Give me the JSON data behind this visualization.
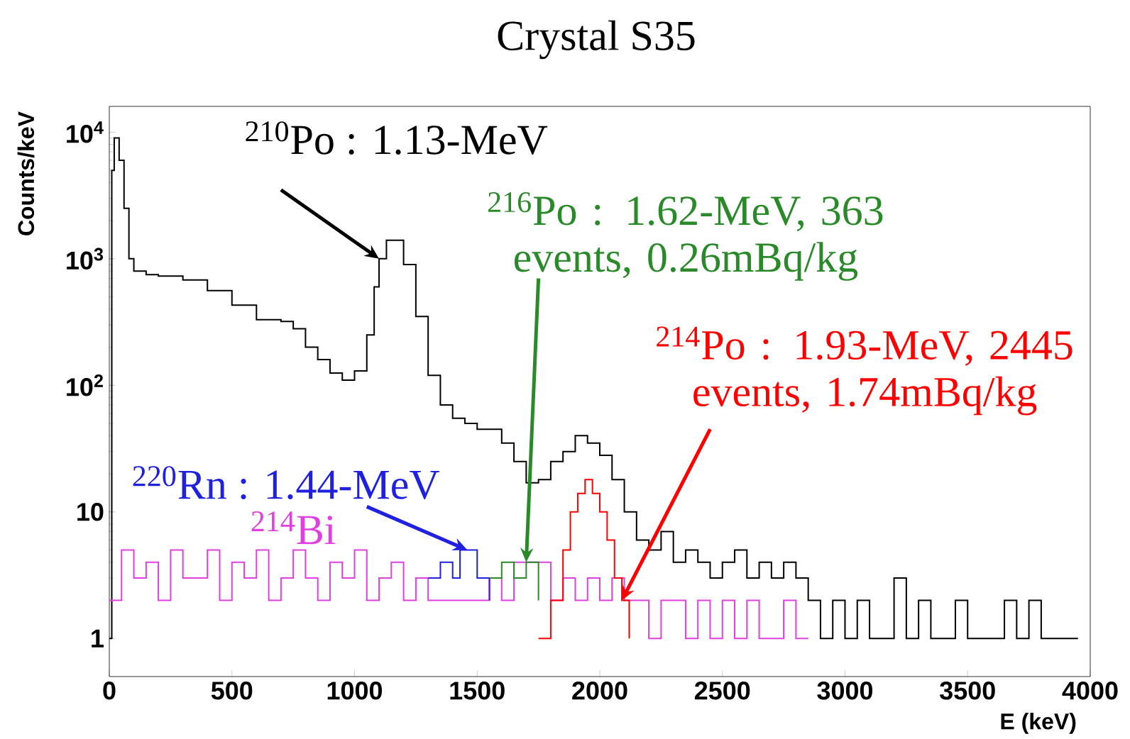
{
  "chart_data": {
    "type": "step",
    "title": "Crystal S35",
    "xlabel": "E (keV)",
    "ylabel": "Counts/keV",
    "log": "y",
    "xlim": [
      0,
      4000
    ],
    "ylim": [
      0.5,
      16000
    ],
    "xticks": [
      0,
      500,
      1000,
      1500,
      2000,
      2500,
      3000,
      3500,
      4000
    ],
    "yticks": [
      1,
      10,
      {
        "value": 100,
        "label": "10$^{2}$"
      },
      {
        "value": 1000,
        "label": "10$^{3}$"
      },
      {
        "value": 10000,
        "label": "10$^{4}$"
      }
    ],
    "grid": false,
    "series": [
      {
        "name": "$^{210}$Po : 1.13-MeV",
        "color": "#000000",
        "x": [
          0,
          10,
          20,
          40,
          60,
          80,
          100,
          150,
          200,
          300,
          400,
          500,
          600,
          700,
          750,
          800,
          850,
          900,
          950,
          1000,
          1050,
          1080,
          1100,
          1130,
          1160,
          1200,
          1250,
          1300,
          1350,
          1400,
          1450,
          1500,
          1550,
          1600,
          1650,
          1700,
          1750,
          1800,
          1850,
          1900,
          1950,
          2000,
          2050,
          2100,
          2150,
          2200,
          2250,
          2300,
          2350,
          2400,
          2450,
          2500,
          2550,
          2600,
          2650,
          2700,
          2750,
          2800,
          2850,
          2900,
          2950,
          3000,
          3050,
          3100,
          3150,
          3200,
          3250,
          3300,
          3350,
          3400,
          3450,
          3500,
          3550,
          3600,
          3650,
          3700,
          3750,
          3800,
          3850,
          3900,
          3950
        ],
        "values": [
          1,
          5000,
          9000,
          6000,
          2500,
          1000,
          800,
          750,
          730,
          680,
          560,
          430,
          330,
          320,
          280,
          200,
          160,
          125,
          110,
          130,
          250,
          600,
          1000,
          1400,
          1400,
          900,
          350,
          120,
          70,
          55,
          50,
          45,
          45,
          35,
          25,
          17,
          18,
          25,
          30,
          40,
          35,
          28,
          18,
          10,
          6,
          5,
          7,
          4,
          5,
          4,
          3,
          4,
          5,
          3,
          4,
          3,
          4,
          3,
          2,
          1,
          2,
          1,
          2,
          1,
          1,
          3,
          1,
          2,
          1,
          1,
          2,
          1,
          1,
          1,
          2,
          1,
          2,
          1,
          1,
          1,
          1
        ]
      },
      {
        "name": "$^{214}$Bi",
        "color": "#e040e0",
        "x": [
          0,
          50,
          100,
          150,
          200,
          250,
          300,
          350,
          400,
          450,
          500,
          550,
          600,
          650,
          700,
          750,
          800,
          850,
          900,
          950,
          1000,
          1050,
          1100,
          1150,
          1200,
          1250,
          1300,
          1550,
          1600,
          1650,
          1800,
          1850,
          1900,
          1950,
          2000,
          2050,
          2100,
          2150,
          2200,
          2250,
          2300,
          2350,
          2400,
          2450,
          2500,
          2550,
          2600,
          2650,
          2700,
          2750,
          2800,
          2850
        ],
        "values": [
          2,
          5,
          3,
          4,
          2,
          5,
          3,
          3,
          5,
          2,
          4,
          3,
          5,
          2,
          3,
          5,
          3,
          2,
          4,
          3,
          5,
          2,
          3,
          4,
          2,
          3,
          2,
          3,
          2,
          4,
          2,
          3,
          2,
          3,
          2,
          3,
          2,
          2,
          1,
          2,
          2,
          1,
          2,
          1,
          2,
          1,
          2,
          1,
          1,
          2,
          1,
          1
        ]
      },
      {
        "name": "$^{220}$Rn : 1.44-MeV",
        "color": "#2020e0",
        "x": [
          1300,
          1350,
          1400,
          1430,
          1460,
          1500,
          1550
        ],
        "values": [
          3,
          4,
          3,
          5,
          5,
          3,
          2
        ]
      },
      {
        "name": "$^{216}$Po : 1.62-MeV, 363 events, 0.26mBq/kg",
        "color": "#2a8a2a",
        "x": [
          1550,
          1600,
          1650,
          1700,
          1750
        ],
        "values": [
          3,
          4,
          3,
          4,
          2
        ]
      },
      {
        "name": "$^{214}$Po : 1.93-MeV, 2445 events, 1.74mBq/kg",
        "color": "#ff0000",
        "x": [
          1750,
          1800,
          1850,
          1880,
          1910,
          1940,
          1970,
          2000,
          2030,
          2060,
          2090,
          2120
        ],
        "values": [
          1,
          2,
          5,
          10,
          14,
          18,
          14,
          10,
          6,
          3,
          2,
          1
        ]
      }
    ]
  }
}
